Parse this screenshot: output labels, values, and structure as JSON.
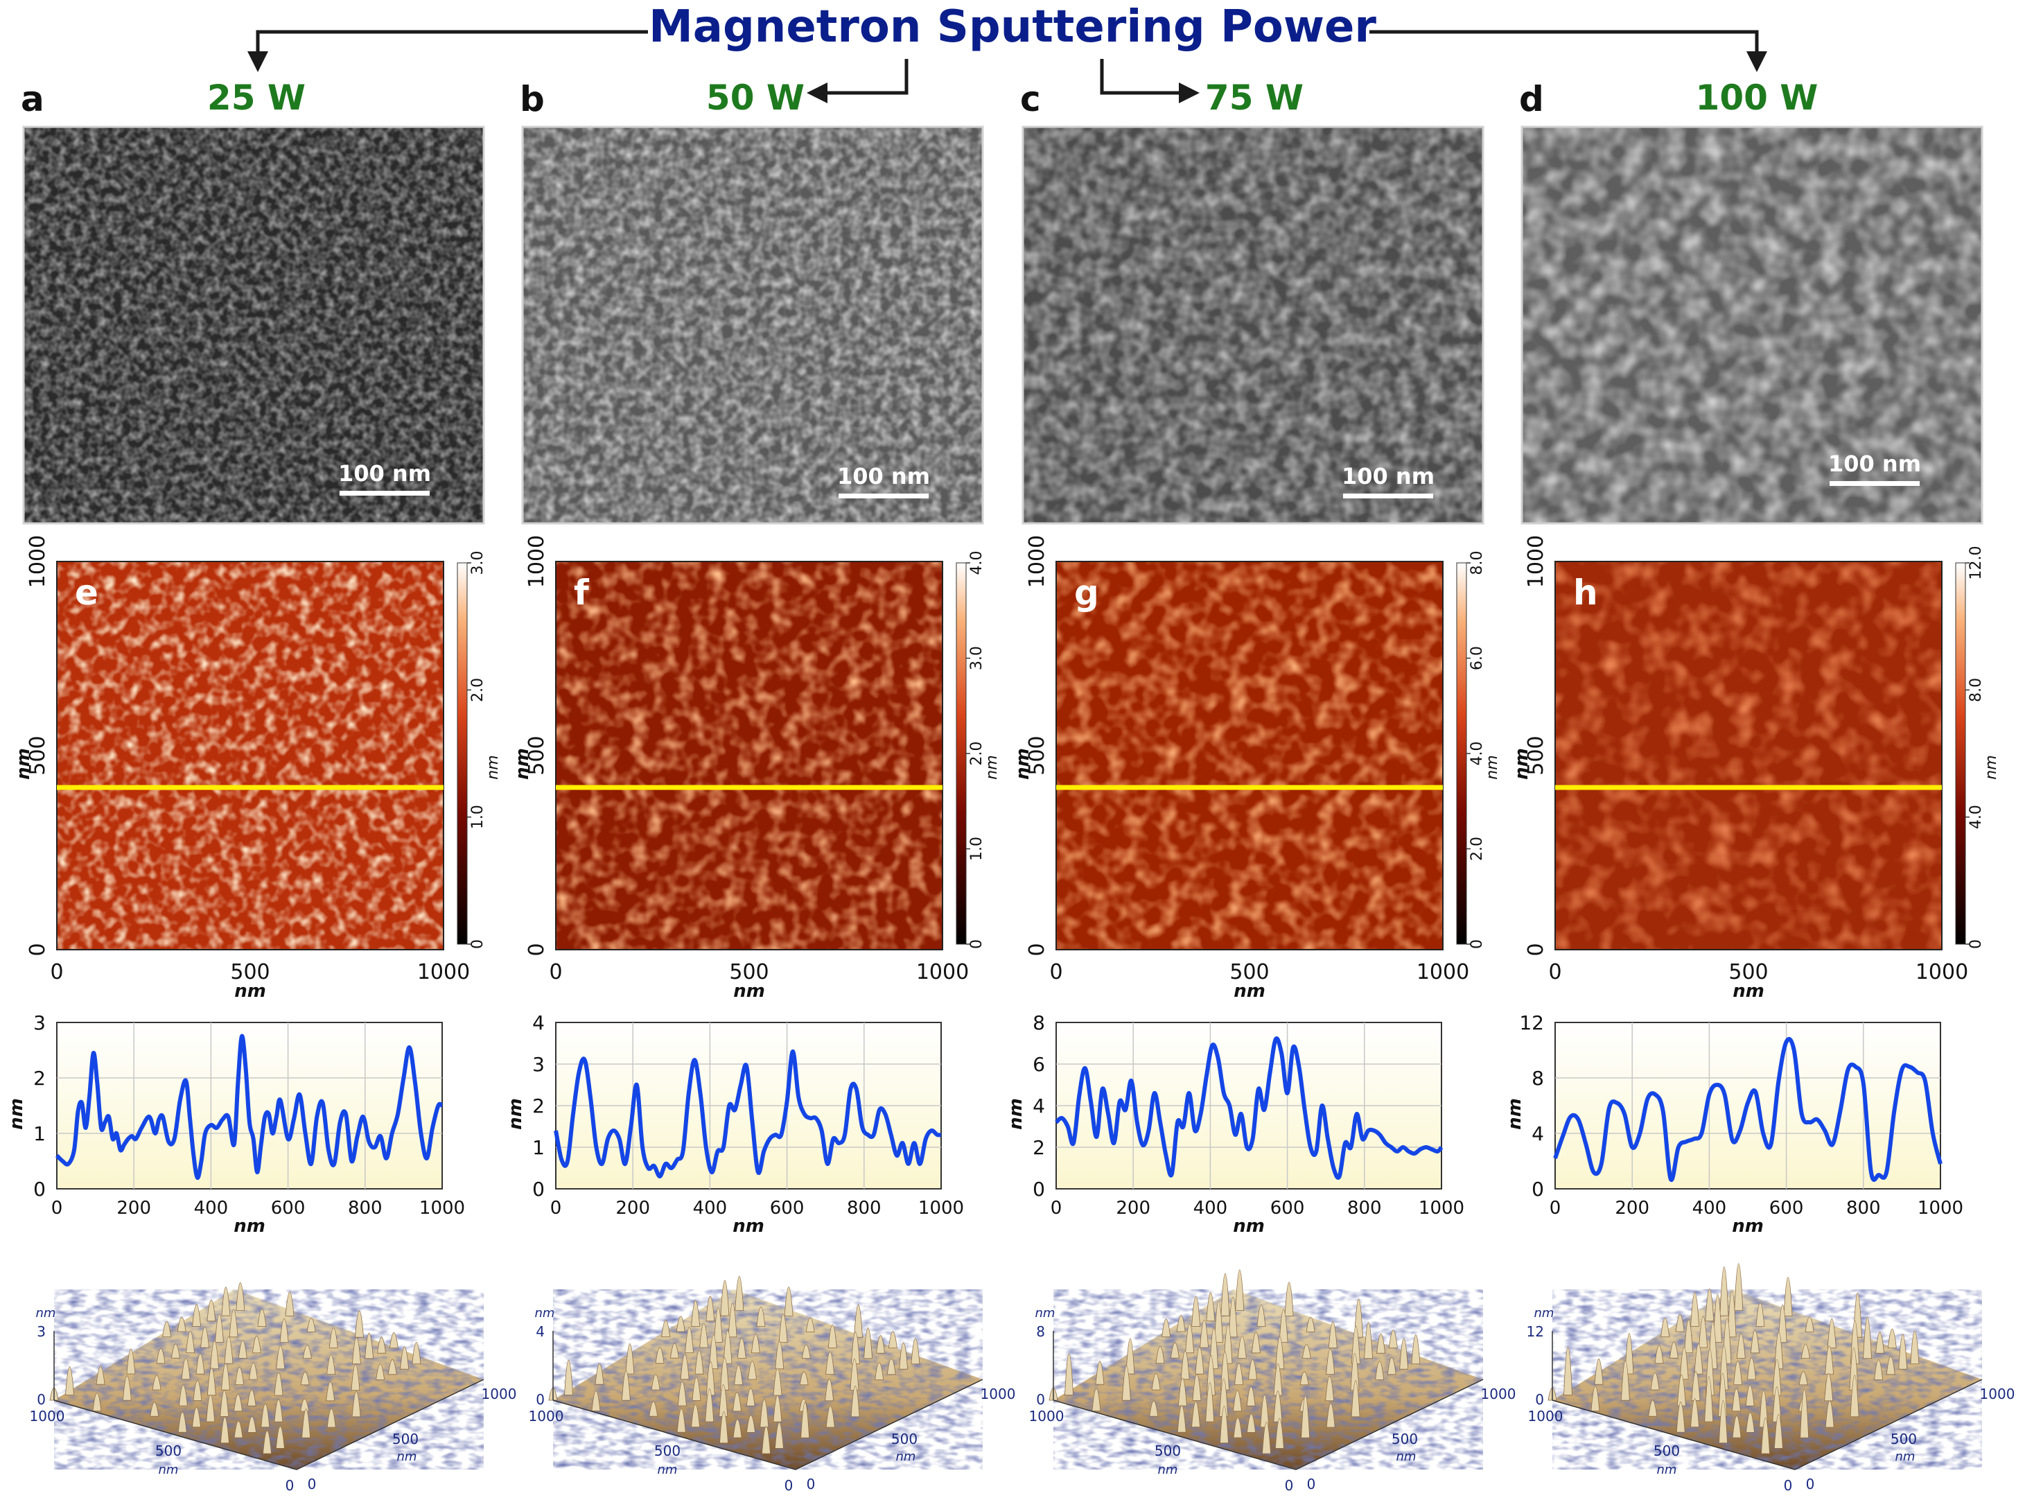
{
  "figure": {
    "title": "Magnetron Sputtering Power",
    "colors": {
      "title": "#0b1f8c",
      "power": "#1e7a1e",
      "arrow": "#1a1a1a",
      "afm_line": "#ffee00",
      "profile_line": "#1446e6",
      "profile_bg_top": "#ffffff",
      "profile_bg_bottom": "#fdfbdc"
    },
    "columns": [
      {
        "power": "25 W",
        "sem": {
          "panel": "a",
          "scale_bar": "100 nm"
        },
        "afm": {
          "panel": "e",
          "x_ticks": [
            "0",
            "500",
            "1000"
          ],
          "y_ticks": [
            "0",
            "500",
            "1000"
          ],
          "x_label": "nm",
          "y_label": "nm",
          "colorbar_ticks": [
            "0",
            "1.0",
            "2.0",
            "3.0"
          ],
          "colorbar_label": "nm",
          "z_max": 3
        },
        "profile": {
          "x_ticks": [
            "0",
            "200",
            "400",
            "600",
            "800",
            "1000"
          ],
          "y_ticks": [
            "0",
            "1",
            "2",
            "3"
          ],
          "x_label": "nm",
          "y_label": "nm",
          "ylim": [
            0,
            3
          ],
          "x": [
            0,
            15,
            30,
            45,
            55,
            65,
            75,
            85,
            95,
            105,
            115,
            125,
            135,
            145,
            155,
            165,
            175,
            185,
            195,
            205,
            220,
            240,
            255,
            265,
            275,
            290,
            305,
            320,
            335,
            345,
            355,
            365,
            375,
            385,
            400,
            415,
            430,
            445,
            460,
            470,
            480,
            490,
            500,
            510,
            520,
            530,
            540,
            550,
            560,
            570,
            580,
            600,
            615,
            630,
            645,
            660,
            675,
            690,
            705,
            720,
            735,
            750,
            765,
            780,
            795,
            810,
            825,
            840,
            855,
            870,
            885,
            900,
            915,
            930,
            945,
            960,
            975,
            990,
            1000
          ],
          "y": [
            0.6,
            0.5,
            0.45,
            0.7,
            1.4,
            1.55,
            1.1,
            1.7,
            2.45,
            1.9,
            1.1,
            1.2,
            1.3,
            0.9,
            1.0,
            0.7,
            0.8,
            0.9,
            0.95,
            0.9,
            1.1,
            1.3,
            1.0,
            1.25,
            1.3,
            0.85,
            0.9,
            1.6,
            1.95,
            1.3,
            0.6,
            0.2,
            0.5,
            1.0,
            1.15,
            1.1,
            1.25,
            1.3,
            0.8,
            1.9,
            2.75,
            2.2,
            1.2,
            0.9,
            0.3,
            0.8,
            1.3,
            1.35,
            1.0,
            1.3,
            1.6,
            0.9,
            1.25,
            1.7,
            1.0,
            0.45,
            1.3,
            1.55,
            0.7,
            0.45,
            1.2,
            1.35,
            0.5,
            0.95,
            1.3,
            0.85,
            0.75,
            0.95,
            0.55,
            1.0,
            1.35,
            2.0,
            2.55,
            1.9,
            1.0,
            0.55,
            1.1,
            1.5,
            1.5
          ]
        },
        "surface3d": {
          "z_label": "nm",
          "z_top": "3",
          "z_zero": "0",
          "axis_a": [
            "1000",
            "500",
            "0"
          ],
          "axis_b": [
            "0",
            "500",
            "1000"
          ],
          "a_label": "nm",
          "b_label": "nm"
        }
      },
      {
        "power": "50 W",
        "sem": {
          "panel": "b",
          "scale_bar": "100 nm"
        },
        "afm": {
          "panel": "f",
          "x_ticks": [
            "0",
            "500",
            "1000"
          ],
          "y_ticks": [
            "0",
            "500",
            "1000"
          ],
          "x_label": "nm",
          "y_label": "nm",
          "colorbar_ticks": [
            "0",
            "1.0",
            "2.0",
            "3.0",
            "4.0"
          ],
          "colorbar_label": "nm",
          "z_max": 4
        },
        "profile": {
          "x_ticks": [
            "0",
            "200",
            "400",
            "600",
            "800",
            "1000"
          ],
          "y_ticks": [
            "0",
            "1",
            "2",
            "3",
            "4"
          ],
          "x_label": "nm",
          "y_label": "nm",
          "ylim": [
            0,
            4
          ],
          "x": [
            0,
            15,
            30,
            45,
            60,
            75,
            90,
            105,
            120,
            135,
            150,
            165,
            180,
            195,
            210,
            225,
            240,
            255,
            270,
            285,
            300,
            315,
            330,
            345,
            360,
            375,
            390,
            405,
            420,
            435,
            450,
            465,
            480,
            495,
            510,
            525,
            540,
            555,
            570,
            585,
            600,
            615,
            630,
            645,
            660,
            675,
            690,
            705,
            720,
            735,
            750,
            765,
            780,
            795,
            810,
            825,
            840,
            855,
            870,
            885,
            900,
            915,
            930,
            945,
            960,
            975,
            990,
            1000
          ],
          "y": [
            1.4,
            0.7,
            0.65,
            1.8,
            2.8,
            3.1,
            2.2,
            1.0,
            0.6,
            1.2,
            1.4,
            1.2,
            0.6,
            1.5,
            2.5,
            1.0,
            0.5,
            0.55,
            0.3,
            0.6,
            0.5,
            0.7,
            0.9,
            2.3,
            3.1,
            2.3,
            1.0,
            0.4,
            0.9,
            1.0,
            2.0,
            1.9,
            2.5,
            2.95,
            1.6,
            0.4,
            0.9,
            1.2,
            1.3,
            1.3,
            2.1,
            3.3,
            2.2,
            1.8,
            1.7,
            1.7,
            1.4,
            0.6,
            1.2,
            1.1,
            1.3,
            2.4,
            2.4,
            1.5,
            1.3,
            1.3,
            1.9,
            1.8,
            1.3,
            0.8,
            1.1,
            0.6,
            1.1,
            0.6,
            1.2,
            1.4,
            1.3,
            1.3
          ]
        },
        "surface3d": {
          "z_label": "nm",
          "z_top": "4",
          "z_zero": "0",
          "axis_a": [
            "1000",
            "500",
            "0"
          ],
          "axis_b": [
            "0",
            "500",
            "1000"
          ],
          "a_label": "nm",
          "b_label": "nm"
        }
      },
      {
        "power": "75 W",
        "sem": {
          "panel": "c",
          "scale_bar": "100 nm"
        },
        "afm": {
          "panel": "g",
          "x_ticks": [
            "0",
            "500",
            "1000"
          ],
          "y_ticks": [
            "0",
            "500",
            "1000"
          ],
          "x_label": "nm",
          "y_label": "nm",
          "colorbar_ticks": [
            "0",
            "2.0",
            "4.0",
            "6.0",
            "8.0"
          ],
          "colorbar_label": "nm",
          "z_max": 8
        },
        "profile": {
          "x_ticks": [
            "0",
            "200",
            "400",
            "600",
            "800",
            "1000"
          ],
          "y_ticks": [
            "0",
            "2",
            "4",
            "6",
            "8"
          ],
          "x_label": "nm",
          "y_label": "nm",
          "ylim": [
            0,
            8
          ],
          "x": [
            0,
            15,
            30,
            45,
            60,
            75,
            90,
            105,
            120,
            135,
            150,
            165,
            180,
            195,
            210,
            225,
            240,
            255,
            270,
            285,
            300,
            315,
            330,
            345,
            360,
            375,
            390,
            405,
            420,
            435,
            450,
            465,
            480,
            495,
            510,
            525,
            540,
            555,
            570,
            585,
            600,
            615,
            630,
            645,
            660,
            675,
            690,
            705,
            720,
            735,
            750,
            765,
            780,
            795,
            810,
            825,
            840,
            855,
            870,
            885,
            900,
            915,
            930,
            945,
            960,
            975,
            990,
            1000
          ],
          "y": [
            3.2,
            3.4,
            3.0,
            2.2,
            4.5,
            5.8,
            4.2,
            2.5,
            4.8,
            3.6,
            2.2,
            4.2,
            3.8,
            5.2,
            3.2,
            2.1,
            2.8,
            4.6,
            3.2,
            1.6,
            0.7,
            3.2,
            3.0,
            4.6,
            2.8,
            3.6,
            5.4,
            6.9,
            6.3,
            4.6,
            4.0,
            2.6,
            3.6,
            2.0,
            2.4,
            4.8,
            3.8,
            5.6,
            7.2,
            6.5,
            4.6,
            6.8,
            5.9,
            3.8,
            2.0,
            1.8,
            4.0,
            2.4,
            1.0,
            0.6,
            2.2,
            2.0,
            3.6,
            2.4,
            2.8,
            2.8,
            2.6,
            2.2,
            2.0,
            1.8,
            2.0,
            1.8,
            1.7,
            1.9,
            2.0,
            1.9,
            1.8,
            2.0
          ]
        },
        "surface3d": {
          "z_label": "nm",
          "z_top": "8",
          "z_zero": "0",
          "axis_a": [
            "1000",
            "500",
            "0"
          ],
          "axis_b": [
            "0",
            "500",
            "1000"
          ],
          "a_label": "nm",
          "b_label": "nm"
        }
      },
      {
        "power": "100 W",
        "sem": {
          "panel": "d",
          "scale_bar": "100 nm"
        },
        "afm": {
          "panel": "h",
          "x_ticks": [
            "0",
            "500",
            "1000"
          ],
          "y_ticks": [
            "0",
            "500",
            "1000"
          ],
          "x_label": "nm",
          "y_label": "nm",
          "colorbar_ticks": [
            "0",
            "4.0",
            "8.0",
            "12.0"
          ],
          "colorbar_label": "nm",
          "z_max": 12
        },
        "profile": {
          "x_ticks": [
            "0",
            "200",
            "400",
            "600",
            "800",
            "1000"
          ],
          "y_ticks": [
            "0",
            "4",
            "8",
            "12"
          ],
          "x_label": "nm",
          "y_label": "nm",
          "ylim": [
            0,
            12
          ],
          "x": [
            0,
            20,
            40,
            60,
            80,
            100,
            120,
            140,
            160,
            180,
            200,
            220,
            240,
            260,
            280,
            300,
            320,
            340,
            360,
            380,
            400,
            420,
            440,
            460,
            480,
            500,
            520,
            540,
            560,
            580,
            600,
            620,
            640,
            660,
            680,
            700,
            720,
            740,
            760,
            780,
            800,
            820,
            840,
            860,
            880,
            900,
            920,
            940,
            960,
            980,
            1000
          ],
          "y": [
            2.2,
            3.8,
            5.2,
            5.0,
            3.2,
            1.2,
            1.8,
            5.8,
            6.2,
            5.4,
            3.0,
            4.0,
            6.5,
            6.8,
            5.6,
            0.7,
            3.0,
            3.4,
            3.6,
            4.0,
            6.8,
            7.5,
            6.8,
            3.5,
            4.2,
            6.2,
            7.0,
            4.0,
            3.2,
            7.8,
            10.6,
            10.0,
            5.4,
            4.8,
            5.0,
            4.2,
            3.2,
            5.6,
            8.6,
            8.8,
            7.6,
            1.2,
            1.0,
            1.2,
            5.6,
            8.6,
            8.8,
            8.4,
            7.8,
            4.0,
            1.8
          ]
        },
        "surface3d": {
          "z_label": "nm",
          "z_top": "12",
          "z_zero": "0",
          "axis_a": [
            "1000",
            "500",
            "0"
          ],
          "axis_b": [
            "0",
            "500",
            "1000"
          ],
          "a_label": "nm",
          "b_label": "nm"
        }
      }
    ]
  }
}
